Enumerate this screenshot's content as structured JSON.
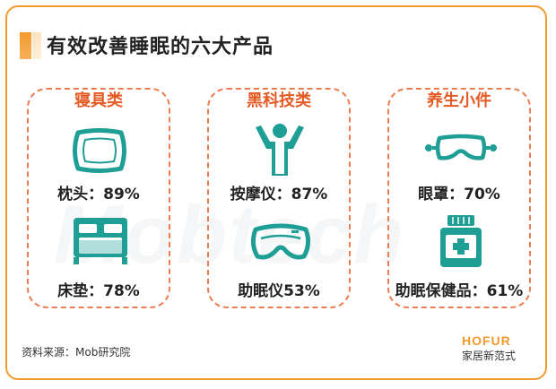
{
  "title": "有效改善睡眠的六大产品",
  "watermark": "Mobtech",
  "colors": {
    "accent": "#f39a2e",
    "heading": "#e55a24",
    "icon": "#1f9e96",
    "border": "#ec7d52"
  },
  "categories": [
    {
      "name": "寝具类",
      "items": [
        {
          "icon": "pillow-icon",
          "label": "枕头：89%"
        },
        {
          "icon": "bed-icon",
          "label": "床垫：78%"
        }
      ]
    },
    {
      "name": "黑科技类",
      "items": [
        {
          "icon": "massager-icon",
          "label": "按摩仪：87%"
        },
        {
          "icon": "sleep-goggles-icon",
          "label": "助眠仪53%"
        }
      ]
    },
    {
      "name": "养生小件",
      "items": [
        {
          "icon": "eye-mask-icon",
          "label": "眼罩：70%"
        },
        {
          "icon": "medicine-bottle-icon",
          "label": "助眠保健品：61%"
        }
      ]
    }
  ],
  "source": "资料来源：Mob研究院",
  "brand": {
    "name": "HOFUR",
    "slogan": "家居新范式"
  }
}
